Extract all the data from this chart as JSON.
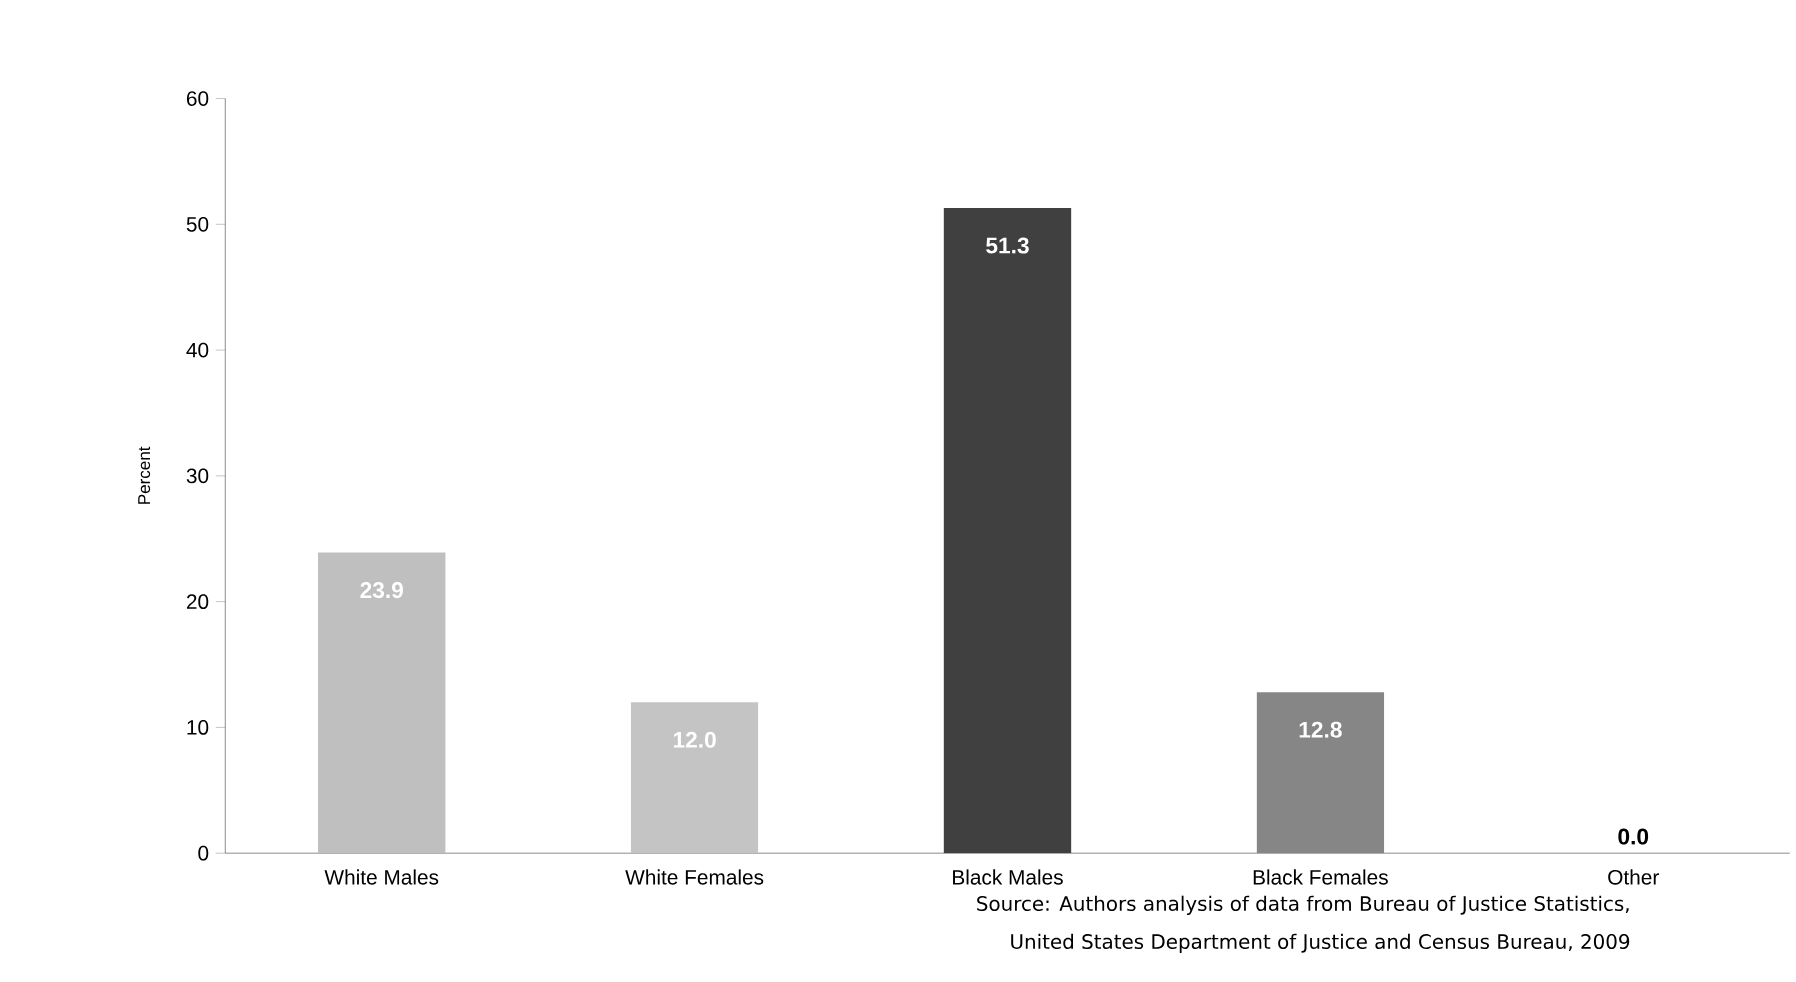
{
  "chart_data": {
    "type": "bar",
    "ylabel": "Percent",
    "categories": [
      "White Males",
      "White Females",
      "Black Males",
      "Black Females",
      "Other"
    ],
    "values": [
      23.9,
      12.0,
      51.3,
      12.8,
      0.0
    ],
    "value_labels": [
      "23.9",
      "12.0",
      "51.3",
      "12.8",
      "0.0"
    ],
    "colors": [
      "#bfbfbf",
      "#c4c4c4",
      "#404040",
      "#868686",
      "#a6a6a6"
    ],
    "ylim": [
      0,
      60
    ],
    "yticks": [
      0,
      10,
      20,
      30,
      40,
      50,
      60
    ],
    "grid": false,
    "annotations": [
      "Source:  Authors analysis of data from Bureau of Justice Statistics,",
      "United States  Department of Justice and  Census Bureau, 2009"
    ]
  }
}
